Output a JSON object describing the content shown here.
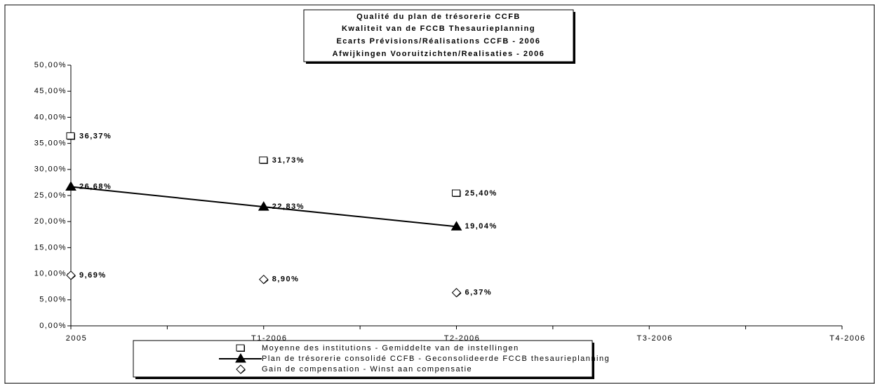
{
  "chart_data": {
    "type": "line",
    "title": [
      "Qualité du plan de trésorerie CCFB",
      "Kwaliteit van de FCCB Thesaurieplanning",
      "Ecarts Prévisions/Réalisations CCFB - 2006",
      "Afwijkingen Vooruitzichten/Realisaties - 2006"
    ],
    "categories": [
      "2005",
      "T1-2006",
      "T2-2006",
      "T3-2006",
      "T4-2006"
    ],
    "ylim": [
      0,
      50
    ],
    "yticks": [
      {
        "value": 0,
        "label": "0,00%"
      },
      {
        "value": 5,
        "label": "5,00%"
      },
      {
        "value": 10,
        "label": "10,00%"
      },
      {
        "value": 15,
        "label": "15,00%"
      },
      {
        "value": 20,
        "label": "20,00%"
      },
      {
        "value": 25,
        "label": "25,00%"
      },
      {
        "value": 30,
        "label": "30,00%"
      },
      {
        "value": 35,
        "label": "35,00%"
      },
      {
        "value": 40,
        "label": "40,00%"
      },
      {
        "value": 45,
        "label": "45,00%"
      },
      {
        "value": 50,
        "label": "50,00%"
      }
    ],
    "grid": false,
    "legend": "bottom",
    "series": [
      {
        "name": "Moyenne des institutions - Gemiddelte van de instellingen",
        "color": "#000000",
        "marker": "square",
        "line": false,
        "values": [
          36.37,
          31.73,
          25.4,
          null,
          null
        ],
        "value_labels": [
          "36,37%",
          "31,73%",
          "25,40%",
          null,
          null
        ]
      },
      {
        "name": "Plan de trésorerie consolidé CCFB - Geconsolideerde  FCCB thesaurieplanning",
        "color": "#000000",
        "marker": "triangle",
        "line": true,
        "values": [
          26.68,
          22.83,
          19.04,
          null,
          null
        ],
        "value_labels": [
          "26,68%",
          "22,83%",
          "19,04%",
          null,
          null
        ]
      },
      {
        "name": "Gain de compensation - Winst aan compensatie",
        "color": "#000000",
        "marker": "diamond",
        "line": false,
        "values": [
          9.69,
          8.9,
          6.37,
          null,
          null
        ],
        "value_labels": [
          "9,69%",
          "8,90%",
          "6,37%",
          null,
          null
        ]
      }
    ]
  }
}
